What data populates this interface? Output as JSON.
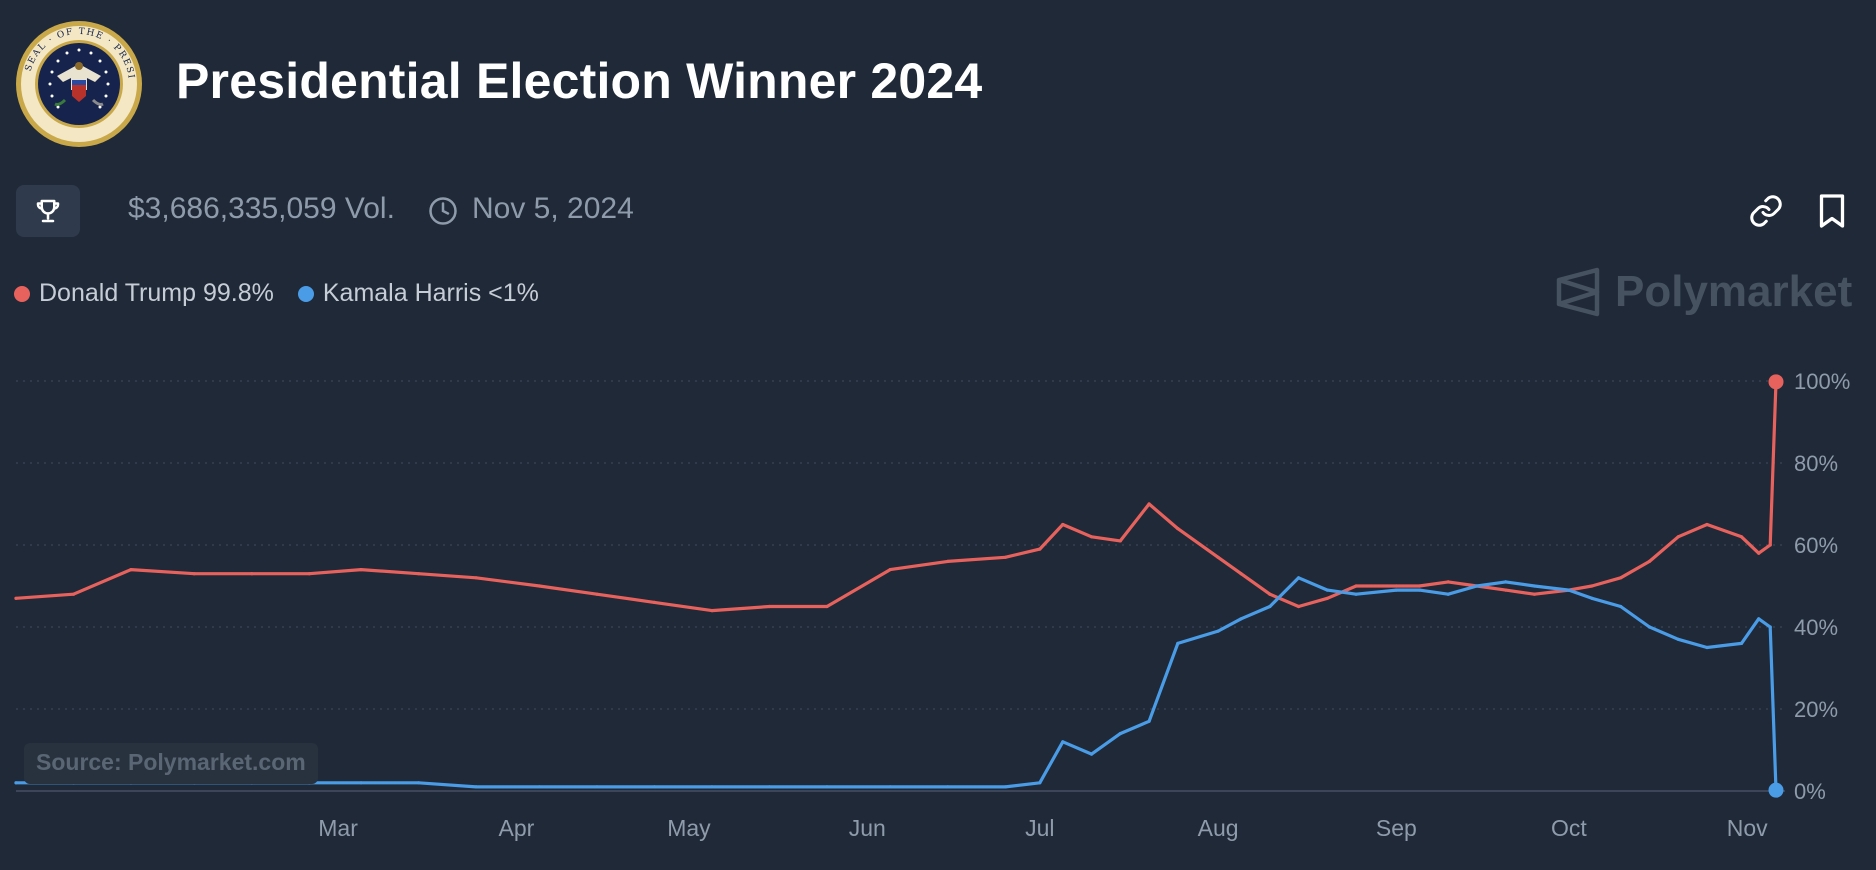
{
  "header": {
    "title": "Presidential Election Winner 2024",
    "volume": "$3,686,335,059 Vol.",
    "end_date": "Nov 5, 2024"
  },
  "icons": {
    "seal": "presidential-seal-logo",
    "trophy": "trophy-icon",
    "clock": "clock-icon",
    "link": "link-icon",
    "bookmark": "bookmark-icon",
    "watermark_logo": "polymarket-logo-icon"
  },
  "watermark": {
    "text": "Polymarket"
  },
  "source_label": "Source: Polymarket.com",
  "colors": {
    "background": "#1f2937",
    "trump": "#e8625d",
    "harris": "#4a9ce6",
    "muted": "#8f9bab"
  },
  "legend": [
    {
      "label": "Donald Trump 99.8%",
      "color": "#e8625d"
    },
    {
      "label": "Kamala Harris <1%",
      "color": "#4a9ce6"
    }
  ],
  "chart_data": {
    "type": "line",
    "x": [
      "2024-01-05",
      "2024-01-15",
      "2024-01-25",
      "2024-02-05",
      "2024-02-15",
      "2024-02-25",
      "2024-03-05",
      "2024-03-15",
      "2024-03-25",
      "2024-04-05",
      "2024-04-15",
      "2024-04-25",
      "2024-05-05",
      "2024-05-15",
      "2024-05-25",
      "2024-06-05",
      "2024-06-15",
      "2024-06-25",
      "2024-07-01",
      "2024-07-05",
      "2024-07-10",
      "2024-07-15",
      "2024-07-20",
      "2024-07-25",
      "2024-08-01",
      "2024-08-05",
      "2024-08-10",
      "2024-08-15",
      "2024-08-20",
      "2024-08-25",
      "2024-09-01",
      "2024-09-05",
      "2024-09-10",
      "2024-09-15",
      "2024-09-20",
      "2024-09-25",
      "2024-10-01",
      "2024-10-05",
      "2024-10-10",
      "2024-10-15",
      "2024-10-20",
      "2024-10-25",
      "2024-10-31",
      "2024-11-03",
      "2024-11-05",
      "2024-11-06"
    ],
    "series": [
      {
        "name": "Donald Trump",
        "color": "#e8625d",
        "values": [
          47,
          48,
          54,
          53,
          53,
          53,
          54,
          53,
          52,
          50,
          48,
          46,
          44,
          45,
          45,
          54,
          56,
          57,
          59,
          65,
          62,
          61,
          70,
          64,
          57,
          53,
          48,
          45,
          47,
          50,
          50,
          50,
          51,
          50,
          49,
          48,
          49,
          50,
          52,
          56,
          62,
          65,
          62,
          58,
          60,
          99.8
        ]
      },
      {
        "name": "Kamala Harris",
        "color": "#4a9ce6",
        "values": [
          2,
          2,
          2,
          2,
          2,
          2,
          2,
          2,
          1,
          1,
          1,
          1,
          1,
          1,
          1,
          1,
          1,
          1,
          2,
          12,
          9,
          14,
          17,
          36,
          39,
          42,
          45,
          52,
          49,
          48,
          49,
          49,
          48,
          50,
          51,
          50,
          49,
          47,
          45,
          40,
          37,
          35,
          36,
          42,
          40,
          0.2
        ]
      }
    ],
    "x_ticks": [
      "Mar",
      "Apr",
      "May",
      "Jun",
      "Jul",
      "Aug",
      "Sep",
      "Oct",
      "Nov"
    ],
    "y_ticks": [
      "0%",
      "20%",
      "40%",
      "60%",
      "80%",
      "100%"
    ],
    "ylim": [
      0,
      100
    ],
    "grid": true
  }
}
